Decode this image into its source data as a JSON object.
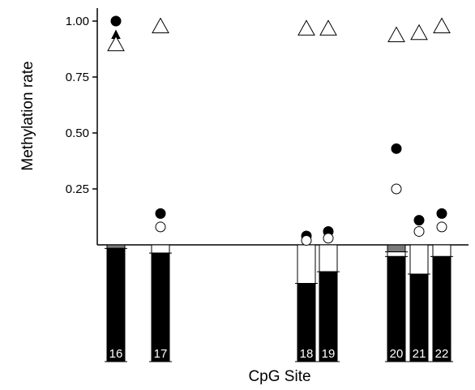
{
  "chart_data": {
    "type": "scatter",
    "title": "",
    "xlabel": "CpG Site",
    "ylabel": "Methylation rate",
    "ylim": [
      0,
      1.0
    ],
    "yticks": [
      "1.00",
      "0.75",
      "0.50",
      "0.25"
    ],
    "yticks_values": [
      1.0,
      0.75,
      0.5,
      0.25
    ],
    "grid": false,
    "legend": "none",
    "categories": [
      "16",
      "17",
      "18",
      "19",
      "20",
      "21",
      "22"
    ],
    "series": [
      {
        "marker": "filled-circle",
        "values": [
          1.0,
          0.14,
          0.04,
          0.06,
          0.43,
          0.11,
          0.14
        ]
      },
      {
        "marker": "open-circle",
        "values": [
          null,
          0.08,
          0.02,
          0.03,
          0.25,
          0.06,
          0.08
        ]
      },
      {
        "marker": "filled-triangle",
        "values": [
          0.94,
          0.98,
          0.97,
          0.97,
          0.94,
          0.95,
          0.98
        ]
      },
      {
        "marker": "open-triangle",
        "values": [
          0.9,
          0.98,
          0.97,
          0.97,
          0.94,
          0.95,
          0.98
        ]
      }
    ],
    "bars": {
      "description": "stacked bars below the baseline",
      "segments_top_to_bottom": [
        "gray",
        "white",
        "black"
      ],
      "values": [
        {
          "site": "16",
          "gray": 0.03,
          "white": 0.0,
          "black": 0.97
        },
        {
          "site": "17",
          "gray": 0.0,
          "white": 0.07,
          "black": 0.93
        },
        {
          "site": "18",
          "gray": 0.0,
          "white": 0.33,
          "black": 0.67
        },
        {
          "site": "19",
          "gray": 0.0,
          "white": 0.23,
          "black": 0.77
        },
        {
          "site": "20",
          "gray": 0.06,
          "white": 0.04,
          "black": 0.9
        },
        {
          "site": "21",
          "gray": 0.0,
          "white": 0.25,
          "black": 0.75
        },
        {
          "site": "22",
          "gray": 0.0,
          "white": 0.1,
          "black": 0.9
        }
      ]
    },
    "colors": {
      "black": "#000000",
      "gray": "#7a7a7a",
      "white": "#ffffff"
    }
  }
}
